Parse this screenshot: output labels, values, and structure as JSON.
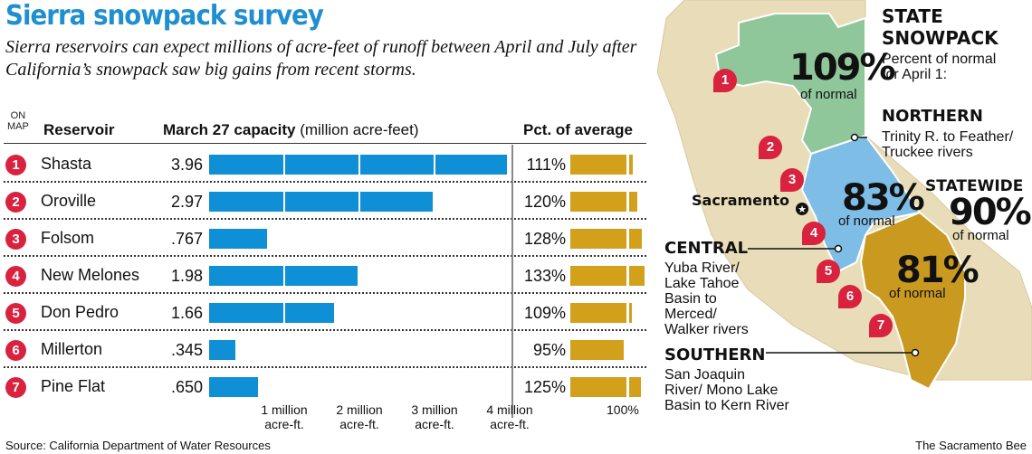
{
  "header": {
    "title": "Sierra snowpack survey",
    "subtitle": "Sierra reservoirs can expect millions of acre-feet of runoff between April and July after California’s snowpack saw big gains from recent storms."
  },
  "table": {
    "col_onmap": "ON MAP",
    "col_onmap_line1": "ON",
    "col_onmap_line2": "MAP",
    "col_reservoir": "Reservoir",
    "col_capacity_bold": "March 27 capacity",
    "col_capacity_unit": "(million acre-feet)",
    "col_pct": "Pct. of average",
    "rows": [
      {
        "num": "1",
        "name": "Shasta",
        "capacity": "3.96",
        "pct": "111%"
      },
      {
        "num": "2",
        "name": "Oroville",
        "capacity": "2.97",
        "pct": "120%"
      },
      {
        "num": "3",
        "name": "Folsom",
        "capacity": ".767",
        "pct": "128%"
      },
      {
        "num": "4",
        "name": "New Melones",
        "capacity": "1.98",
        "pct": "133%"
      },
      {
        "num": "5",
        "name": "Don Pedro",
        "capacity": "1.66",
        "pct": "109%"
      },
      {
        "num": "6",
        "name": "Millerton",
        "capacity": ".345",
        "pct": "95%"
      },
      {
        "num": "7",
        "name": "Pine Flat",
        "capacity": ".650",
        "pct": "125%"
      }
    ],
    "ticks": [
      {
        "line1": "1 million",
        "line2": "acre-ft."
      },
      {
        "line1": "2 million",
        "line2": "acre-ft."
      },
      {
        "line1": "3 million",
        "line2": "acre-ft."
      },
      {
        "line1": "4 million",
        "line2": "acre-ft."
      }
    ],
    "tick_100": "100%"
  },
  "footer": {
    "source": "Source: California Department of Water Resources",
    "credit": "The Sacramento Bee"
  },
  "map": {
    "heading1": "STATE",
    "heading2": "SNOWPACK",
    "desc1": "Percent of normal",
    "desc2": "for April 1:",
    "northern": {
      "label": "NORTHERN",
      "desc1": "Trinity R. to Feather/",
      "desc2": "Truckee rivers",
      "pct": "109%",
      "sub": "of normal",
      "color": "#8fc79a"
    },
    "central": {
      "label": "CENTRAL",
      "desc": [
        "Yuba River/",
        "Lake Tahoe",
        "Basin to",
        "Merced/",
        "Walker rivers"
      ],
      "pct": "83%",
      "sub": "of normal",
      "color": "#7dbde6"
    },
    "southern": {
      "label": "SOUTHERN",
      "desc": [
        "San Joaquin",
        "River/ Mono Lake",
        "Basin to Kern River"
      ],
      "pct": "81%",
      "sub": "of normal",
      "color": "#c99a1f"
    },
    "statewide": {
      "label": "STATEWIDE",
      "pct": "90%",
      "sub": "of normal"
    },
    "city": "Sacramento",
    "pins": [
      "1",
      "2",
      "3",
      "4",
      "5",
      "6",
      "7"
    ]
  },
  "chart_data": {
    "type": "bar",
    "title": "Sierra snowpack survey",
    "subtitle": "Sierra reservoirs can expect millions of acre-feet of runoff between April and July after California’s snowpack saw big gains from recent storms.",
    "categories": [
      "Shasta",
      "Oroville",
      "Folsom",
      "New Melones",
      "Don Pedro",
      "Millerton",
      "Pine Flat"
    ],
    "series": [
      {
        "name": "March 27 capacity (million acre-feet)",
        "values": [
          3.96,
          2.97,
          0.767,
          1.98,
          1.66,
          0.345,
          0.65
        ]
      },
      {
        "name": "Pct. of average",
        "values": [
          111,
          120,
          128,
          133,
          109,
          95,
          125
        ]
      }
    ],
    "xlabel": "million acre-feet",
    "ticks": [
      "1 million acre-ft.",
      "2 million acre-ft.",
      "3 million acre-ft.",
      "4 million acre-ft."
    ],
    "xlim": [
      0,
      4
    ],
    "pct_reference": 100,
    "orientation": "horizontal",
    "snowpack_percent_of_normal": {
      "Northern": 109,
      "Central": 83,
      "Southern": 81,
      "Statewide": 90
    },
    "source": "California Department of Water Resources"
  }
}
